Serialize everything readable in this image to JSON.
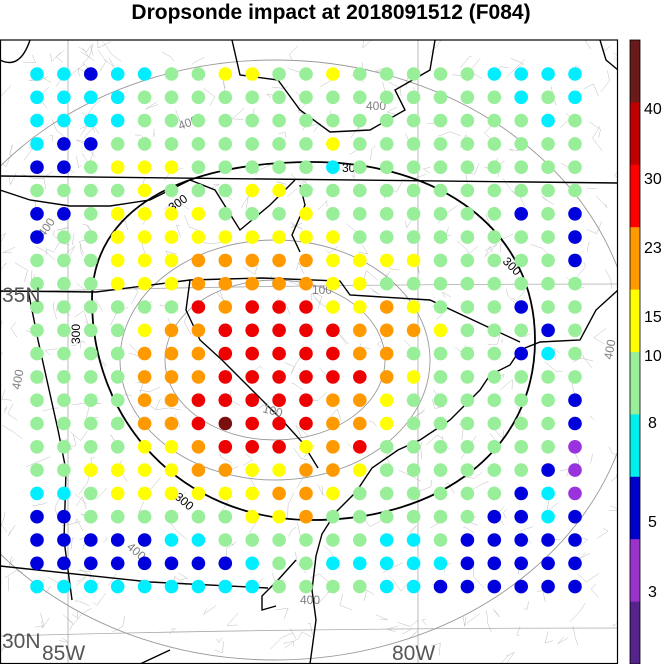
{
  "title": "Dropsonde impact at 2018091512 (F084)",
  "map": {
    "lat_labels": [
      "35N",
      "30N"
    ],
    "lon_labels": [
      "85W",
      "80W"
    ],
    "contour_black_labels": [
      "300",
      "300",
      "300",
      "300",
      "300"
    ],
    "contour_gray_labels": [
      "100",
      "100",
      "400",
      "400",
      "400",
      "400",
      "400",
      "400",
      "400"
    ]
  },
  "colorbar": {
    "tick_labels": [
      "40",
      "30",
      "23",
      "15",
      "10",
      "8",
      "5",
      "3"
    ],
    "colors": [
      "#6a1a1a",
      "#c00000",
      "#ff0000",
      "#ff9900",
      "#ffff00",
      "#99ee99",
      "#00eeee",
      "#0000cc",
      "#9933cc",
      "#55238c"
    ]
  },
  "legend_classes": {
    "darkred": "#7a0f0f",
    "red": "#ee0000",
    "orange": "#ff9900",
    "yellow": "#ffff00",
    "lightgreen": "#99ee99",
    "cyan": "#00eeff",
    "blue": "#0000dd",
    "purple": "#9933dd"
  },
  "grid": {
    "cols": 21,
    "rows": 23,
    "codes": [
      "CCBCCGGYYGGYGGGGGCCCC",
      "CCCCGGGGGGGGGGGGGGCGC",
      "CCCCGGGGGGGGGGGGGGGCG",
      "CBBGGGGGGGGYGGGGGGGGG",
      "BBGYYYGGGGGCGGGGGGGGG",
      "GGGGYGGGYYGGGGGGGGGGG",
      "BBGYYYYGGGYGGGGGGGBGB",
      "BGGYYYYYYYYYGGGGGGGGB",
      "GGGYYYOOOOOYYYYGGGGGB",
      "GGGYYYOOOOOYYGGGGGGGG",
      "GGGGGGRORRRYYOYGGGBGG",
      "GGGGYOORRRRROOOYGGGBG",
      "GGGGOOORRRRROOGGGGBCG",
      "GGGGOOORRRRRROYGGGGGG",
      "GGGGOORRRRROOYGGGGGGB",
      "GGGGOORDRRROOYGGGGGGB",
      "GGGGYYORRRYORGGGGGGGP",
      "GGYYYYOOYYOOYGGGGGGBP",
      "CCGYYYYYYOOYGGGGGGBCP",
      "BBGGGGGGYYOGGGGGGBBCB",
      "BBBBBCCGGGGGGCCGBBBBB",
      "BBBBBBBBCGGCCCCCBBBBB",
      "CCCCCCCCCGGGGCCBBBBBB"
    ]
  }
}
